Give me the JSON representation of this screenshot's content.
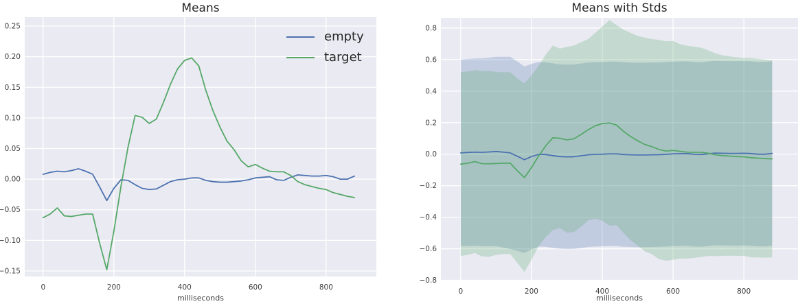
{
  "figure": {
    "background": "#ffffff"
  },
  "style": {
    "axes_background": "#eaeaf2",
    "grid_color": "#ffffff",
    "tick_color": "#3d3d3d",
    "title_color": "#262626",
    "line_width": 1.8,
    "grid_width": 1.3
  },
  "chart_data": [
    {
      "type": "line",
      "title": "Means",
      "xlabel": "milliseconds",
      "legend": {
        "location": "upper right",
        "labels": [
          "empty",
          "target"
        ]
      },
      "grid": true,
      "xlim": [
        -52,
        942
      ],
      "ylim": [
        -0.159,
        0.2646
      ],
      "xtick_values": [
        0,
        200,
        400,
        600,
        800
      ],
      "xtick_labels": [
        "0",
        "200",
        "400",
        "600",
        "800"
      ],
      "ytick_values": [
        0.25,
        0.2,
        0.15,
        0.1,
        0.05,
        0.0,
        -0.05,
        -0.1,
        -0.15
      ],
      "ytick_labels": [
        "0.25",
        "0.20",
        "0.15",
        "0.10",
        "0.05",
        "0.00",
        "−0.05",
        "−0.10",
        "−0.15"
      ],
      "x": [
        0,
        20,
        40,
        60,
        80,
        100,
        120,
        140,
        160,
        180,
        200,
        220,
        240,
        260,
        280,
        300,
        320,
        340,
        360,
        380,
        400,
        420,
        440,
        460,
        480,
        500,
        520,
        540,
        560,
        580,
        600,
        620,
        640,
        660,
        680,
        700,
        720,
        740,
        760,
        780,
        800,
        820,
        840,
        860,
        880
      ],
      "series": [
        {
          "name": "empty",
          "color": "#4c72b0",
          "values": [
            0.008,
            0.011,
            0.013,
            0.012,
            0.014,
            0.017,
            0.013,
            0.008,
            -0.013,
            -0.035,
            -0.015,
            -0.001,
            -0.002,
            -0.009,
            -0.015,
            -0.017,
            -0.016,
            -0.01,
            -0.004,
            -0.001,
            0.0,
            0.002,
            0.002,
            -0.002,
            -0.004,
            -0.005,
            -0.005,
            -0.004,
            -0.003,
            -0.001,
            0.002,
            0.003,
            0.004,
            -0.001,
            -0.002,
            0.003,
            0.007,
            0.006,
            0.005,
            0.005,
            0.006,
            0.004,
            0.0,
            0.0,
            0.005
          ]
        },
        {
          "name": "target",
          "color": "#55a868",
          "values": [
            -0.063,
            -0.057,
            -0.047,
            -0.06,
            -0.061,
            -0.059,
            -0.057,
            -0.057,
            -0.105,
            -0.148,
            -0.085,
            -0.012,
            0.052,
            0.104,
            0.101,
            0.091,
            0.098,
            0.125,
            0.155,
            0.18,
            0.194,
            0.198,
            0.185,
            0.145,
            0.112,
            0.085,
            0.062,
            0.048,
            0.03,
            0.02,
            0.024,
            0.018,
            0.013,
            0.012,
            0.012,
            0.006,
            -0.004,
            -0.009,
            -0.012,
            -0.015,
            -0.017,
            -0.022,
            -0.025,
            -0.028,
            -0.03
          ]
        }
      ]
    },
    {
      "type": "line+band",
      "title": "Means with Stds",
      "xlabel": "milliseconds",
      "grid": true,
      "band_alpha": 0.25,
      "xlim": [
        -56,
        953
      ],
      "ylim": [
        -0.802,
        0.865
      ],
      "xtick_values": [
        0,
        200,
        400,
        600,
        800
      ],
      "xtick_labels": [
        "0",
        "200",
        "400",
        "600",
        "800"
      ],
      "ytick_values": [
        0.8,
        0.6,
        0.4,
        0.2,
        0.0,
        -0.2,
        -0.4,
        -0.6,
        -0.8
      ],
      "ytick_labels": [
        "0.8",
        "0.6",
        "0.4",
        "0.2",
        "0.0",
        "−0.2",
        "−0.4",
        "−0.6",
        "−0.8"
      ],
      "x": [
        0,
        20,
        40,
        60,
        80,
        100,
        120,
        140,
        160,
        180,
        200,
        220,
        240,
        260,
        280,
        300,
        320,
        340,
        360,
        380,
        400,
        420,
        440,
        460,
        480,
        500,
        520,
        540,
        560,
        580,
        600,
        620,
        640,
        660,
        680,
        700,
        720,
        740,
        760,
        780,
        800,
        820,
        840,
        860,
        880
      ],
      "series": [
        {
          "name": "empty",
          "color": "#4c72b0",
          "values": [
            0.008,
            0.011,
            0.013,
            0.012,
            0.014,
            0.017,
            0.013,
            0.008,
            -0.013,
            -0.035,
            -0.015,
            -0.001,
            -0.002,
            -0.009,
            -0.015,
            -0.017,
            -0.016,
            -0.01,
            -0.004,
            -0.001,
            0.0,
            0.002,
            0.002,
            -0.002,
            -0.004,
            -0.005,
            -0.005,
            -0.004,
            -0.003,
            -0.001,
            0.002,
            0.003,
            0.004,
            -0.001,
            -0.002,
            0.003,
            0.007,
            0.006,
            0.005,
            0.005,
            0.006,
            0.004,
            0.0,
            0.0,
            0.005
          ],
          "std": [
            0.592,
            0.593,
            0.594,
            0.596,
            0.598,
            0.601,
            0.605,
            0.61,
            0.601,
            0.592,
            0.588,
            0.586,
            0.585,
            0.585,
            0.585,
            0.585,
            0.585,
            0.585,
            0.585,
            0.585,
            0.585,
            0.585,
            0.585,
            0.585,
            0.585,
            0.585,
            0.585,
            0.585,
            0.585,
            0.585,
            0.585,
            0.585,
            0.585,
            0.585,
            0.585,
            0.585,
            0.585,
            0.585,
            0.585,
            0.585,
            0.585,
            0.585,
            0.585,
            0.585,
            0.585
          ]
        },
        {
          "name": "target",
          "color": "#55a868",
          "values": [
            -0.063,
            -0.057,
            -0.047,
            -0.06,
            -0.061,
            -0.059,
            -0.057,
            -0.057,
            -0.105,
            -0.148,
            -0.085,
            -0.012,
            0.052,
            0.104,
            0.101,
            0.091,
            0.098,
            0.125,
            0.155,
            0.18,
            0.194,
            0.198,
            0.185,
            0.145,
            0.112,
            0.085,
            0.062,
            0.048,
            0.03,
            0.02,
            0.024,
            0.018,
            0.013,
            0.012,
            0.012,
            0.006,
            -0.004,
            -0.009,
            -0.012,
            -0.015,
            -0.017,
            -0.022,
            -0.025,
            -0.028,
            -0.03
          ],
          "std": [
            0.583,
            0.582,
            0.58,
            0.588,
            0.59,
            0.58,
            0.577,
            0.577,
            0.585,
            0.598,
            0.585,
            0.572,
            0.578,
            0.586,
            0.569,
            0.589,
            0.592,
            0.585,
            0.575,
            0.59,
            0.616,
            0.652,
            0.635,
            0.645,
            0.658,
            0.665,
            0.678,
            0.682,
            0.695,
            0.696,
            0.694,
            0.68,
            0.675,
            0.67,
            0.663,
            0.652,
            0.643,
            0.636,
            0.632,
            0.63,
            0.628,
            0.632,
            0.63,
            0.628,
            0.625
          ]
        }
      ]
    }
  ]
}
